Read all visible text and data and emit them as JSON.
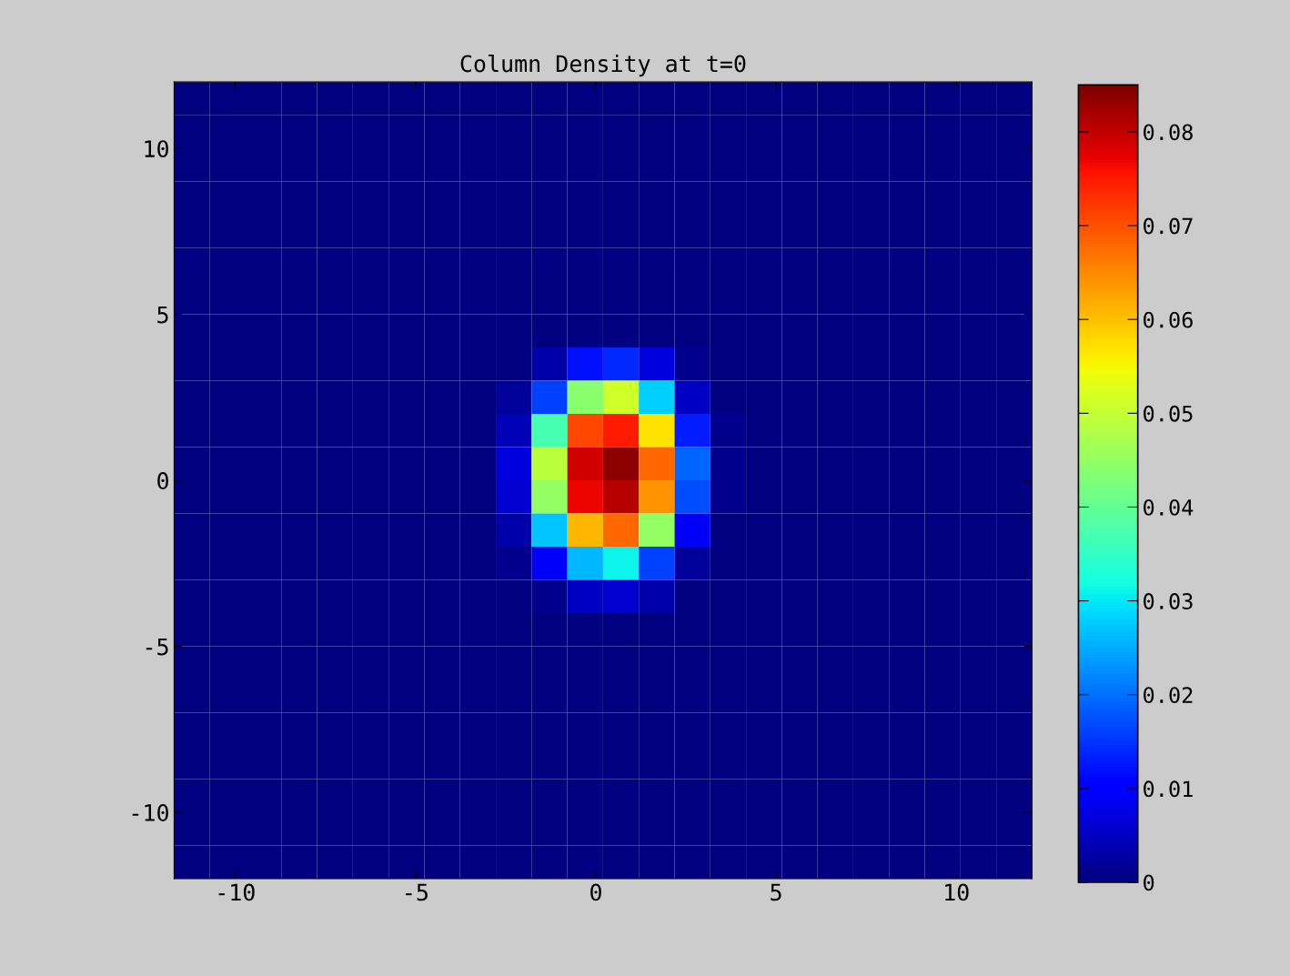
{
  "chart_data": {
    "type": "heatmap",
    "title": "Column Density at t=0",
    "cells": [
      [
        0,
        0,
        0,
        0,
        0,
        0,
        0,
        0,
        0,
        0,
        0,
        0,
        0,
        0,
        0,
        0,
        0,
        0,
        0,
        0,
        0,
        0,
        0,
        0
      ],
      [
        0,
        0,
        0,
        0,
        0,
        0,
        0,
        0,
        0,
        0,
        0,
        0,
        0,
        0,
        0,
        0,
        0,
        0,
        0,
        0,
        0,
        0,
        0,
        0
      ],
      [
        0,
        0,
        0,
        0,
        0,
        0,
        0,
        0,
        0,
        0,
        0,
        0,
        0,
        0,
        0,
        0,
        0,
        0,
        0,
        0,
        0,
        0,
        0,
        0
      ],
      [
        0,
        0,
        0,
        0,
        0,
        0,
        0,
        0,
        0,
        0,
        0,
        0,
        0,
        0,
        0,
        0,
        0,
        0,
        0,
        0,
        0,
        0,
        0,
        0
      ],
      [
        0,
        0,
        0,
        0,
        0,
        0,
        0,
        0,
        0,
        0,
        0,
        0,
        0,
        0,
        0,
        0,
        0,
        0,
        0,
        0,
        0,
        0,
        0,
        0
      ],
      [
        0,
        0,
        0,
        0,
        0,
        0,
        0,
        0,
        0,
        0,
        0,
        0,
        0,
        0,
        0,
        0,
        0,
        0,
        0,
        0,
        0,
        0,
        0,
        0
      ],
      [
        0,
        0,
        0,
        0,
        0,
        0,
        0,
        0,
        0,
        0,
        0,
        0,
        0,
        0,
        0,
        0,
        0,
        0,
        0,
        0,
        0,
        0,
        0,
        0
      ],
      [
        0,
        0,
        0,
        0,
        0,
        0,
        0,
        0,
        0,
        0,
        0,
        0,
        0,
        0,
        0,
        0,
        0,
        0,
        0,
        0,
        0,
        0,
        0,
        0
      ],
      [
        0,
        0,
        0,
        0,
        0,
        0,
        0,
        0,
        0,
        0,
        0.003,
        0.012,
        0.014,
        0.007,
        0.001,
        0,
        0,
        0,
        0,
        0,
        0,
        0,
        0,
        0
      ],
      [
        0,
        0,
        0,
        0,
        0,
        0,
        0,
        0,
        0,
        0.002,
        0.016,
        0.044,
        0.051,
        0.028,
        0.005,
        0,
        0,
        0,
        0,
        0,
        0,
        0,
        0,
        0
      ],
      [
        0,
        0,
        0,
        0,
        0,
        0,
        0,
        0,
        0,
        0.004,
        0.037,
        0.071,
        0.075,
        0.057,
        0.013,
        0.001,
        0,
        0,
        0,
        0,
        0,
        0,
        0,
        0
      ],
      [
        0,
        0,
        0,
        0,
        0,
        0,
        0,
        0,
        0,
        0.007,
        0.049,
        0.079,
        0.084,
        0.068,
        0.019,
        0.001,
        0,
        0,
        0,
        0,
        0,
        0,
        0,
        0
      ],
      [
        0,
        0,
        0,
        0,
        0,
        0,
        0,
        0,
        0,
        0.006,
        0.045,
        0.077,
        0.081,
        0.064,
        0.017,
        0.001,
        0,
        0,
        0,
        0,
        0,
        0,
        0,
        0
      ],
      [
        0,
        0,
        0,
        0,
        0,
        0,
        0,
        0,
        0,
        0.003,
        0.027,
        0.061,
        0.068,
        0.045,
        0.009,
        0,
        0,
        0,
        0,
        0,
        0,
        0,
        0,
        0
      ],
      [
        0,
        0,
        0,
        0,
        0,
        0,
        0,
        0,
        0,
        0.001,
        0.009,
        0.026,
        0.031,
        0.016,
        0.002,
        0,
        0,
        0,
        0,
        0,
        0,
        0,
        0,
        0
      ],
      [
        0,
        0,
        0,
        0,
        0,
        0,
        0,
        0,
        0,
        0,
        0.001,
        0.005,
        0.006,
        0.003,
        0,
        0,
        0,
        0,
        0,
        0,
        0,
        0,
        0,
        0
      ],
      [
        0,
        0,
        0,
        0,
        0,
        0,
        0,
        0,
        0,
        0,
        0,
        0,
        0,
        0,
        0,
        0,
        0,
        0,
        0,
        0,
        0,
        0,
        0,
        0
      ],
      [
        0,
        0,
        0,
        0,
        0,
        0,
        0,
        0,
        0,
        0,
        0,
        0,
        0,
        0,
        0,
        0,
        0,
        0,
        0,
        0,
        0,
        0,
        0,
        0
      ],
      [
        0,
        0,
        0,
        0,
        0,
        0,
        0,
        0,
        0,
        0,
        0,
        0,
        0,
        0,
        0,
        0,
        0,
        0,
        0,
        0,
        0,
        0,
        0,
        0
      ],
      [
        0,
        0,
        0,
        0,
        0,
        0,
        0,
        0,
        0,
        0,
        0,
        0,
        0,
        0,
        0,
        0,
        0,
        0,
        0,
        0,
        0,
        0,
        0,
        0
      ],
      [
        0,
        0,
        0,
        0,
        0,
        0,
        0,
        0,
        0,
        0,
        0,
        0,
        0,
        0,
        0,
        0,
        0,
        0,
        0,
        0,
        0,
        0,
        0,
        0
      ],
      [
        0,
        0,
        0,
        0,
        0,
        0,
        0,
        0,
        0,
        0,
        0,
        0,
        0,
        0,
        0,
        0,
        0,
        0,
        0,
        0,
        0,
        0,
        0,
        0
      ],
      [
        0,
        0,
        0,
        0,
        0,
        0,
        0,
        0,
        0,
        0,
        0,
        0,
        0,
        0,
        0,
        0,
        0,
        0,
        0,
        0,
        0,
        0,
        0,
        0
      ],
      [
        0,
        0,
        0,
        0,
        0,
        0,
        0,
        0,
        0,
        0,
        0,
        0,
        0,
        0,
        0,
        0,
        0,
        0,
        0,
        0,
        0,
        0,
        0,
        0
      ]
    ],
    "xlim": [
      -11.7,
      12.1
    ],
    "ylim": [
      -12,
      12
    ],
    "xticks": [
      -10,
      -5,
      0,
      5,
      10
    ],
    "yticks": [
      -10,
      -5,
      0,
      5,
      10
    ],
    "clim": [
      0,
      0.085
    ],
    "cticks": [
      0,
      0.01,
      0.02,
      0.03,
      0.04,
      0.05,
      0.06,
      0.07,
      0.08
    ]
  }
}
